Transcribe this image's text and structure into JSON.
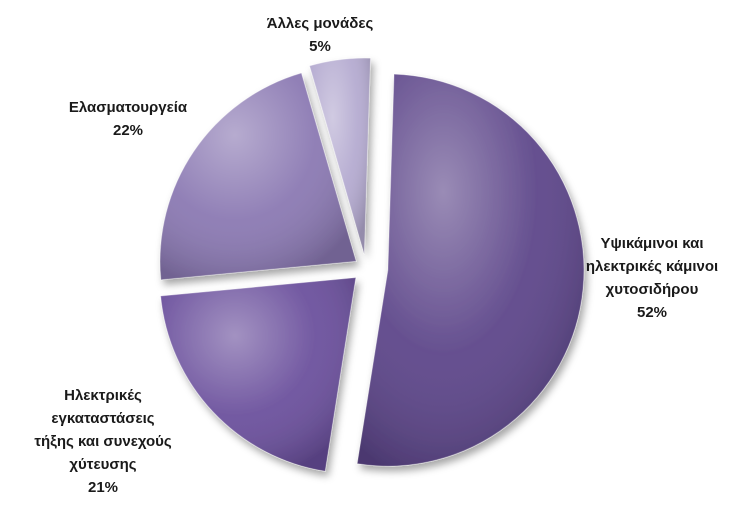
{
  "chart_data": {
    "type": "pie",
    "title": "",
    "slices": [
      {
        "label": [
          "Υψικάμινοι και",
          "ηλεκτρικές κάμινοι",
          "χυτοσιδήρου"
        ],
        "value": 52,
        "value_label": "52%",
        "color": "#5c4589"
      },
      {
        "label": [
          "Ηλεκτρικές",
          "εγκαταστάσεις",
          "τήξης και συνεχούς",
          "χύτευσης"
        ],
        "value": 21,
        "value_label": "21%",
        "color": "#6a4f9c"
      },
      {
        "label": [
          "Ελασματουργεία"
        ],
        "value": 22,
        "value_label": "22%",
        "color": "#8a78b2"
      },
      {
        "label": [
          "Άλλες μονάδες"
        ],
        "value": 5,
        "value_label": "5%",
        "color": "#b4aad0"
      }
    ],
    "legend": "none",
    "data_labels": "outside"
  }
}
